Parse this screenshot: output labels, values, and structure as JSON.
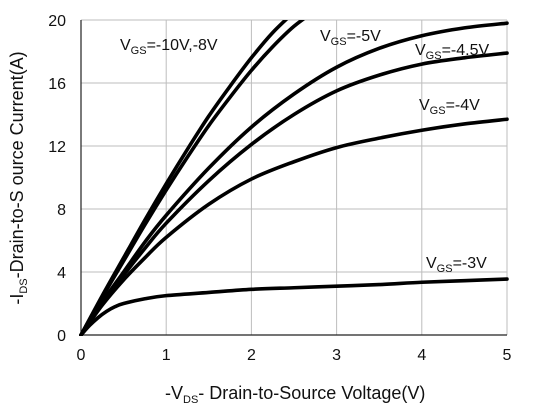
{
  "chart_data": {
    "type": "line",
    "xlabel": {
      "prefix": "-V",
      "sub": "DS",
      "suffix": "- Drain-to-Source Voltage(V)"
    },
    "ylabel": {
      "prefix": "-I",
      "sub": "DS",
      "suffix": "-Drain-to-S ource Current(A)"
    },
    "xlim": [
      0,
      5
    ],
    "ylim": [
      0,
      20
    ],
    "xticks": [
      "0",
      "1",
      "2",
      "3",
      "4",
      "5"
    ],
    "yticks": [
      "0",
      "4",
      "8",
      "12",
      "16",
      "20"
    ],
    "grid": true,
    "series": [
      {
        "name": "V_GS=-10V",
        "x": [
          0,
          0.25,
          0.5,
          0.75,
          1,
          1.25,
          1.5,
          1.75,
          2,
          2.25,
          2.5
        ],
        "y": [
          0,
          2.5,
          4.9,
          7.3,
          9.6,
          11.8,
          13.9,
          15.8,
          17.6,
          19.2,
          20.5
        ]
      },
      {
        "name": "V_GS=-8V",
        "x": [
          0,
          0.25,
          0.5,
          0.75,
          1,
          1.25,
          1.5,
          1.75,
          2,
          2.25,
          2.5,
          2.75
        ],
        "y": [
          0,
          2.4,
          4.7,
          7.0,
          9.2,
          11.3,
          13.3,
          15.1,
          16.8,
          18.3,
          19.6,
          20.6
        ]
      },
      {
        "name": "V_GS=-5V",
        "x": [
          0,
          0.25,
          0.5,
          0.75,
          1,
          1.5,
          2,
          2.5,
          3,
          3.5,
          4,
          4.5,
          5
        ],
        "y": [
          0,
          2.1,
          4.0,
          5.9,
          7.6,
          10.6,
          13.2,
          15.3,
          17.0,
          18.2,
          19.0,
          19.5,
          19.8
        ]
      },
      {
        "name": "V_GS=-4.5V",
        "x": [
          0,
          0.25,
          0.5,
          0.75,
          1,
          1.5,
          2,
          2.5,
          3,
          3.5,
          4,
          4.5,
          5
        ],
        "y": [
          0,
          2.0,
          3.8,
          5.5,
          7.1,
          9.8,
          12.1,
          14.0,
          15.5,
          16.5,
          17.2,
          17.6,
          17.9
        ]
      },
      {
        "name": "V_GS=-4V",
        "x": [
          0,
          0.25,
          0.5,
          0.75,
          1,
          1.5,
          2,
          2.5,
          3,
          3.5,
          4,
          4.5,
          5
        ],
        "y": [
          0,
          1.9,
          3.5,
          4.9,
          6.2,
          8.3,
          9.9,
          11.0,
          11.9,
          12.5,
          13.0,
          13.4,
          13.7
        ]
      },
      {
        "name": "V_GS=-3V",
        "x": [
          0,
          0.1,
          0.2,
          0.3,
          0.4,
          0.5,
          0.75,
          1,
          1.5,
          2,
          2.5,
          3,
          3.5,
          4,
          4.5,
          5
        ],
        "y": [
          0,
          0.6,
          1.1,
          1.5,
          1.8,
          2.0,
          2.3,
          2.5,
          2.7,
          2.9,
          3.0,
          3.1,
          3.2,
          3.35,
          3.45,
          3.55
        ]
      }
    ],
    "annotations": [
      {
        "v": "V",
        "sub": "GS",
        "text": "=-10V,-8V"
      },
      {
        "v": "V",
        "sub": "GS",
        "text": "=-5V"
      },
      {
        "v": "V",
        "sub": "GS",
        "text": "=-4.5V"
      },
      {
        "v": "V",
        "sub": "GS",
        "text": "=-4V"
      },
      {
        "v": "V",
        "sub": "GS",
        "text": "=-3V"
      }
    ]
  }
}
